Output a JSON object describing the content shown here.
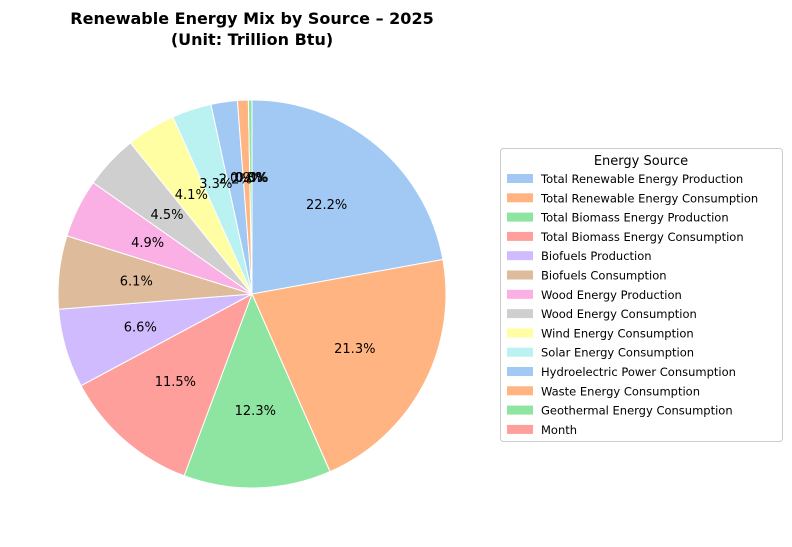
{
  "chart_data": {
    "type": "pie",
    "title": "Renewable Energy Mix by Source – 2025",
    "subtitle": "(Unit: Trillion Btu)",
    "legend_title": "Energy Source",
    "legend_placement": "right",
    "start_angle_deg": 90,
    "direction": "clockwise",
    "slices": [
      {
        "label": "Total Renewable Energy Production",
        "value": 22.2,
        "pct_label": "22.2%",
        "color": "#a1c9f4"
      },
      {
        "label": "Total Renewable Energy Consumption",
        "value": 21.3,
        "pct_label": "21.3%",
        "color": "#ffb482"
      },
      {
        "label": "Total Biomass Energy Production",
        "value": 12.3,
        "pct_label": "12.3%",
        "color": "#8de5a1"
      },
      {
        "label": "Total Biomass Energy Consumption",
        "value": 11.5,
        "pct_label": "11.5%",
        "color": "#ff9f9b"
      },
      {
        "label": "Biofuels Production",
        "value": 6.6,
        "pct_label": "6.6%",
        "color": "#d0bbff"
      },
      {
        "label": "Biofuels Consumption",
        "value": 6.1,
        "pct_label": "6.1%",
        "color": "#debb9b"
      },
      {
        "label": "Wood Energy Production",
        "value": 4.9,
        "pct_label": "4.9%",
        "color": "#fab0e4"
      },
      {
        "label": "Wood Energy Consumption",
        "value": 4.5,
        "pct_label": "4.5%",
        "color": "#cfcfcf"
      },
      {
        "label": "Wind Energy Consumption",
        "value": 4.1,
        "pct_label": "4.1%",
        "color": "#fffea3"
      },
      {
        "label": "Solar Energy Consumption",
        "value": 3.3,
        "pct_label": "3.3%",
        "color": "#b9f2f0"
      },
      {
        "label": "Hydroelectric Power Consumption",
        "value": 2.2,
        "pct_label": "2.2%",
        "color": "#a1c9f4"
      },
      {
        "label": "Waste Energy Consumption",
        "value": 0.9,
        "pct_label": "0.9%",
        "color": "#ffb482"
      },
      {
        "label": "Geothermal Energy Consumption",
        "value": 0.3,
        "pct_label": "0.3%",
        "color": "#8de5a1"
      },
      {
        "label": "Month",
        "value": 0.0,
        "pct_label": "0.0%",
        "color": "#ff9f9b"
      }
    ]
  }
}
